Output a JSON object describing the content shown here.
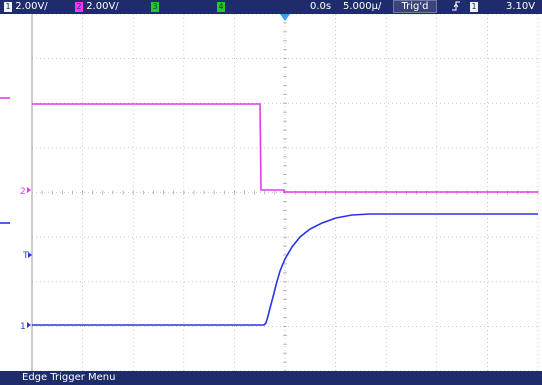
{
  "topbar": {
    "ch1": {
      "num": "1",
      "scale": "2.00V/",
      "color": "#f2f2f2"
    },
    "ch2": {
      "num": "2",
      "scale": "2.00V/",
      "color": "#ff33ff"
    },
    "ch3": {
      "num": "3",
      "color": "#22cc22"
    },
    "ch4": {
      "num": "4",
      "color": "#22cc22"
    },
    "time_pos": "0.0s",
    "time_scale": "5.000μ/",
    "trig_status": "Trig'd",
    "trig_edge_icon": "rising-edge-icon",
    "trig_source": "1",
    "trig_level": "3.10V"
  },
  "markers": {
    "ch2_ground": "2",
    "ch1_ground": "1",
    "trig_level": "T"
  },
  "bottom_menu": "Edge Trigger Menu",
  "colors": {
    "ch1": "#2b35e8",
    "ch2": "#e23ee8",
    "grid": "#bdbdbd",
    "bar": "#1f2c6c"
  }
}
